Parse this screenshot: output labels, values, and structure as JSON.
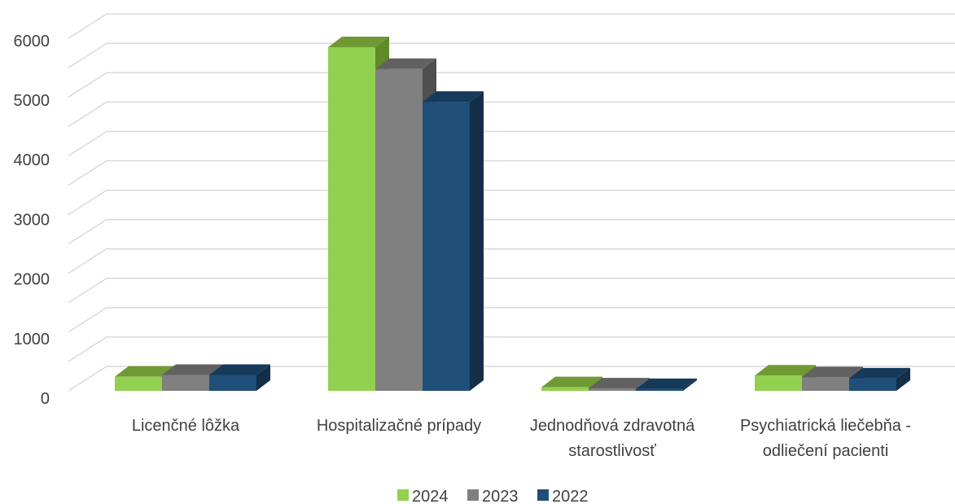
{
  "chart_data": {
    "type": "bar",
    "categories": [
      [
        "Licenčné lôžka"
      ],
      [
        "Hospitalizačné prípady"
      ],
      [
        "Jednodňová zdravotná",
        "starostlivosť"
      ],
      [
        "Psychiatrická liečebňa -",
        "odliečení pacienti"
      ]
    ],
    "series": [
      {
        "name": "2024",
        "values": [
          240,
          5850,
          60,
          260
        ],
        "color": "#92D050",
        "top_color": "#6F9A33",
        "side_color": "#5E8A28"
      },
      {
        "name": "2023",
        "values": [
          270,
          5480,
          40,
          230
        ],
        "color": "#808080",
        "top_color": "#616161",
        "side_color": "#4F4F4F"
      },
      {
        "name": "2022",
        "values": [
          270,
          4920,
          30,
          210
        ],
        "color": "#1F4E79",
        "top_color": "#163A5A",
        "side_color": "#132E48"
      }
    ],
    "ylim": [
      0,
      6000
    ],
    "yticks": [
      "0",
      "1000",
      "2000",
      "3000",
      "4000",
      "5000",
      "6000"
    ],
    "grid": true,
    "legend_position": "bottom"
  }
}
